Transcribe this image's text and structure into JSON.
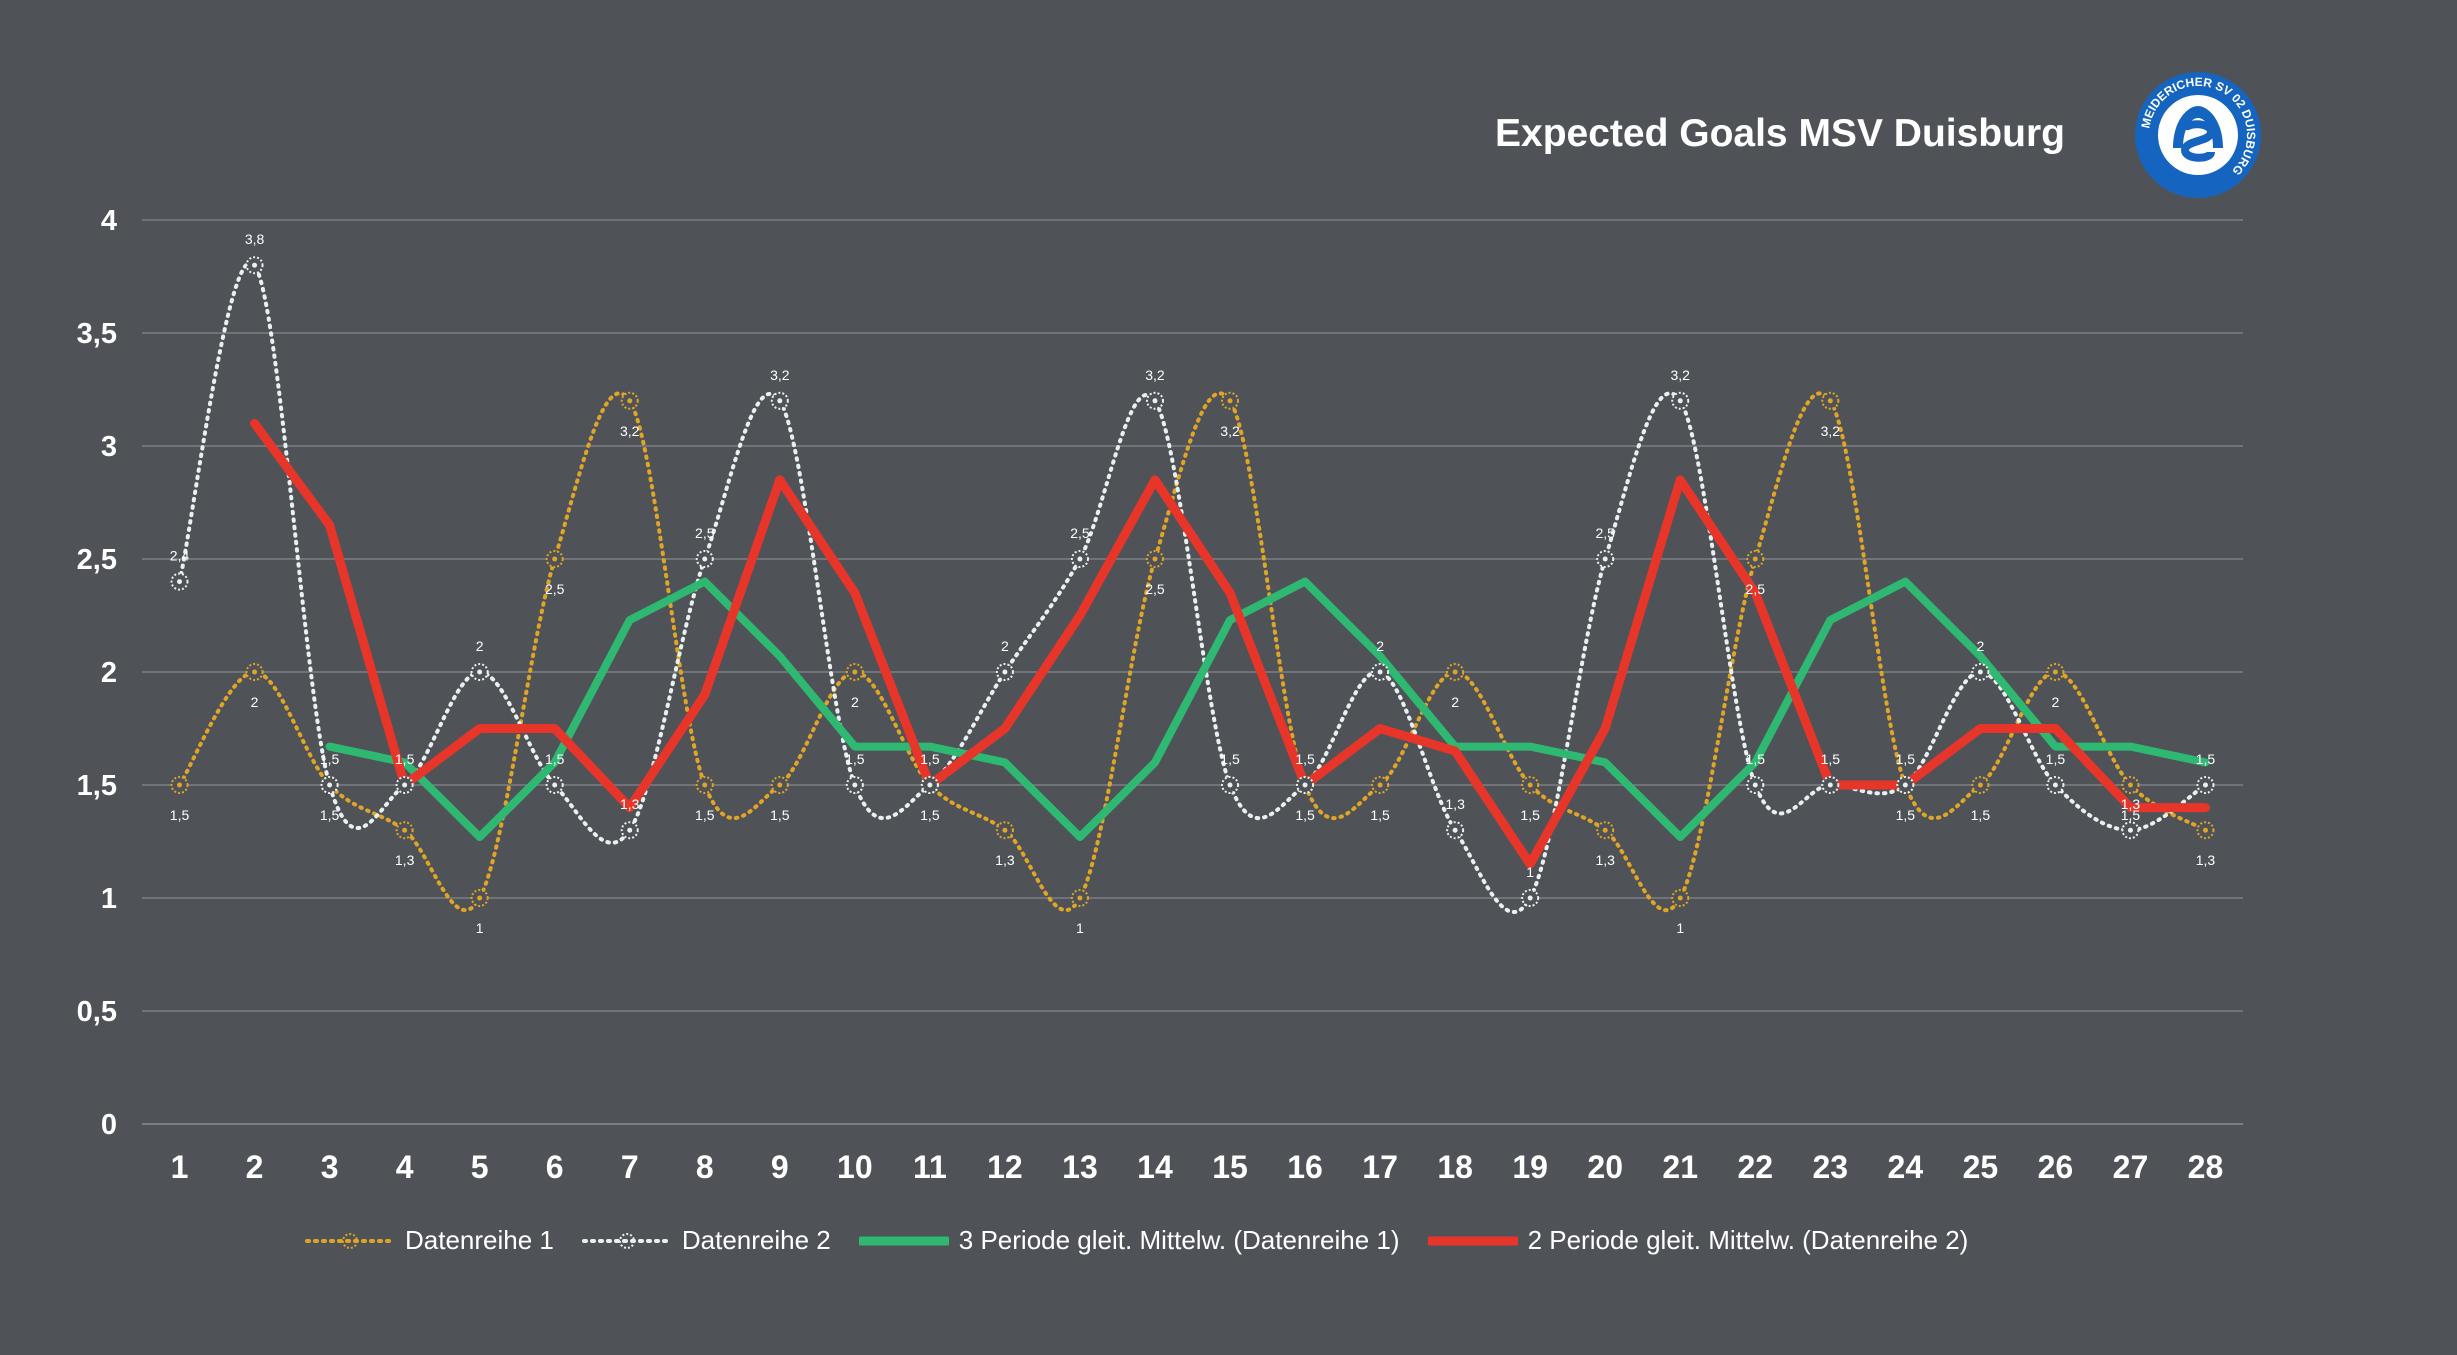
{
  "chart_data": {
    "type": "line",
    "title": "Expected Goals MSV Duisburg",
    "categories": [
      "1",
      "2",
      "3",
      "4",
      "5",
      "6",
      "7",
      "8",
      "9",
      "10",
      "11",
      "12",
      "13",
      "14",
      "15",
      "16",
      "17",
      "18",
      "19",
      "20",
      "21",
      "22",
      "23",
      "24",
      "25",
      "26",
      "27",
      "28"
    ],
    "ylim": [
      0,
      4
    ],
    "yticks": [
      "0",
      "0,5",
      "1",
      "1,5",
      "2",
      "2,5",
      "3",
      "3,5",
      "4"
    ],
    "grid": true,
    "legend_position": "bottom",
    "series": [
      {
        "name": "Datenreihe 1",
        "color": "#e0a526",
        "style": "dotted-smooth-markers",
        "values": [
          1.5,
          2,
          1.5,
          1.3,
          1,
          2.5,
          3.2,
          1.5,
          1.5,
          2,
          1.5,
          1.3,
          1,
          2.5,
          3.2,
          1.5,
          1.5,
          2,
          1.5,
          1.3,
          1,
          2.5,
          3.2,
          1.5,
          1.5,
          2,
          1.5,
          1.3
        ],
        "labels": [
          "1,5",
          "2",
          "1,5",
          "1,3",
          "1",
          "2,5",
          "3,2",
          "1,5",
          "1,5",
          "2",
          "1,5",
          "1,3",
          "1",
          "2,5",
          "3,2",
          "1,5",
          "1,5",
          "2",
          "1,5",
          "1,3",
          "1",
          "2,5",
          "3,2",
          "1,5",
          "1,5",
          "2",
          "1,5",
          "1,3"
        ]
      },
      {
        "name": "Datenreihe 2",
        "color": "#e8f1ef",
        "style": "dotted-smooth-markers",
        "values": [
          2.4,
          3.8,
          1.5,
          1.5,
          2,
          1.5,
          1.3,
          2.5,
          3.2,
          1.5,
          1.5,
          2,
          2.5,
          3.2,
          1.5,
          1.5,
          2,
          1.3,
          1,
          2.5,
          3.2,
          1.5,
          1.5,
          1.5,
          2,
          1.5,
          1.3,
          1.5
        ],
        "labels": [
          "2,4",
          "3,8",
          "1,5",
          "1,5",
          "2",
          "1,5",
          "1,3",
          "2,5",
          "3,2",
          "1,5",
          "1,5",
          "2",
          "2,5",
          "3,2",
          "1,5",
          "1,5",
          "2",
          "1,3",
          "1",
          "2,5",
          "3,2",
          "1,5",
          "1,5",
          "1,5",
          "2",
          "1,5",
          "1,3",
          "1,5"
        ]
      },
      {
        "name": "3 Periode gleit. Mittelw. (Datenreihe 1)",
        "color": "#2eb872",
        "style": "solid",
        "values": [
          null,
          null,
          1.67,
          1.6,
          1.27,
          1.6,
          2.23,
          2.4,
          2.07,
          1.67,
          1.67,
          1.6,
          1.27,
          1.6,
          2.23,
          2.4,
          2.07,
          1.67,
          1.67,
          1.6,
          1.27,
          1.6,
          2.23,
          2.4,
          2.07,
          1.67,
          1.67,
          1.6
        ]
      },
      {
        "name": "2 Periode gleit. Mittelw. (Datenreihe 2)",
        "color": "#e8352a",
        "style": "solid",
        "values": [
          null,
          3.1,
          2.65,
          1.5,
          1.75,
          1.75,
          1.4,
          1.9,
          2.85,
          2.35,
          1.5,
          1.75,
          2.25,
          2.85,
          2.35,
          1.5,
          1.75,
          1.65,
          1.15,
          1.75,
          2.85,
          2.35,
          1.5,
          1.5,
          1.75,
          1.75,
          1.4,
          1.4
        ]
      }
    ]
  },
  "logo": {
    "text": "MEIDERICHER SV 02 DUISBURG",
    "color": "#1565c0"
  }
}
